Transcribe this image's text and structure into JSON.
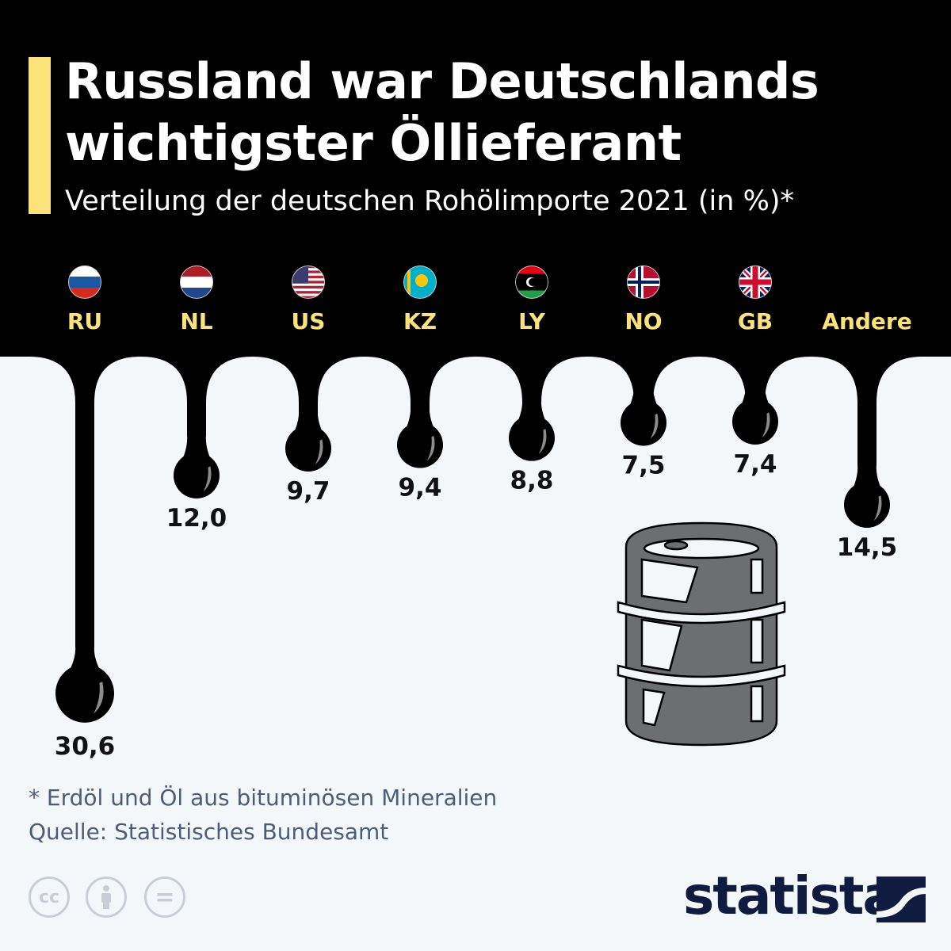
{
  "title": "Russland war Deutschlands wichtigster Öllieferant",
  "subtitle": "Verteilung der deutschen Rohölimporte 2021 (in %)*",
  "colors": {
    "header": "#000000",
    "background": "#f4f7fa",
    "accent": "#fbe37a",
    "label": "#fbe37a",
    "oil": "#000000",
    "barrel": "#6d6e71"
  },
  "chart_data": {
    "type": "bar",
    "title": "Russland war Deutschlands wichtigster Öllieferant",
    "subtitle": "Verteilung der deutschen Rohölimporte 2021 (in %)*",
    "categories": [
      "RU",
      "NL",
      "US",
      "KZ",
      "LY",
      "NO",
      "GB",
      "Andere"
    ],
    "values": [
      30.6,
      12.0,
      9.7,
      9.4,
      8.8,
      7.5,
      7.4,
      14.5
    ],
    "value_labels": [
      "30,6",
      "12,0",
      "9,7",
      "9,4",
      "8,8",
      "7,5",
      "7,4",
      "14,5"
    ],
    "flags": [
      "russia-flag",
      "netherlands-flag",
      "usa-flag",
      "kazakhstan-flag",
      "libya-flag",
      "norway-flag",
      "uk-flag",
      null
    ],
    "orientation": "vertical-drips",
    "grid": false
  },
  "footer": {
    "note": "* Erdöl und Öl aus bituminösen Mineralien",
    "source": "Quelle: Statistisches Bundesamt",
    "license_icons": [
      "cc-icon",
      "attribution-icon",
      "no-derivatives-icon"
    ],
    "cc_label": "cc",
    "eq_label": "=",
    "brand": "statista"
  }
}
